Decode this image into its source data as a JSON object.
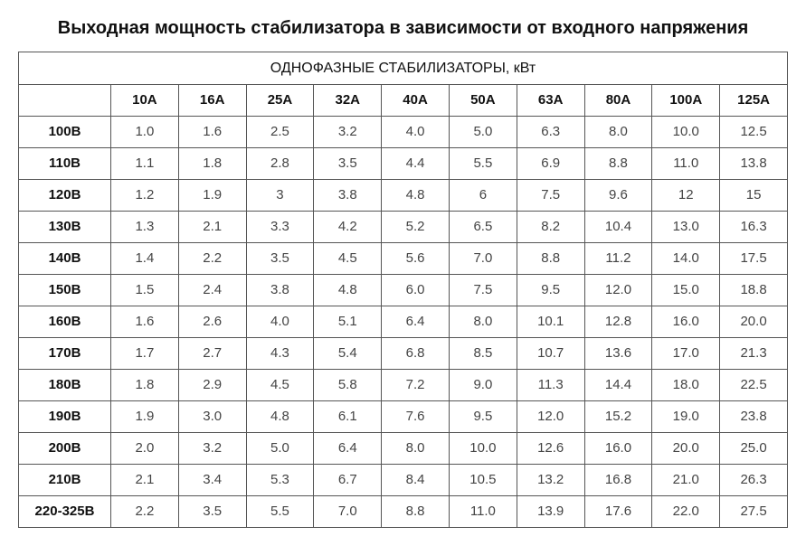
{
  "title": "Выходная мощность стабилизатора в зависимости от входного напряжения",
  "subtitle": "ОДНОФАЗНЫЕ СТАБИЛИЗАТОРЫ, кВт",
  "columns": [
    "10А",
    "16А",
    "25А",
    "32А",
    "40А",
    "50А",
    "63А",
    "80А",
    "100А",
    "125А"
  ],
  "rows": [
    {
      "v": "100В",
      "vals": [
        "1.0",
        "1.6",
        "2.5",
        "3.2",
        "4.0",
        "5.0",
        "6.3",
        "8.0",
        "10.0",
        "12.5"
      ]
    },
    {
      "v": "110В",
      "vals": [
        "1.1",
        "1.8",
        "2.8",
        "3.5",
        "4.4",
        "5.5",
        "6.9",
        "8.8",
        "11.0",
        "13.8"
      ]
    },
    {
      "v": "120В",
      "vals": [
        "1.2",
        "1.9",
        "3",
        "3.8",
        "4.8",
        "6",
        "7.5",
        "9.6",
        "12",
        "15"
      ]
    },
    {
      "v": "130В",
      "vals": [
        "1.3",
        "2.1",
        "3.3",
        "4.2",
        "5.2",
        "6.5",
        "8.2",
        "10.4",
        "13.0",
        "16.3"
      ]
    },
    {
      "v": "140В",
      "vals": [
        "1.4",
        "2.2",
        "3.5",
        "4.5",
        "5.6",
        "7.0",
        "8.8",
        "11.2",
        "14.0",
        "17.5"
      ]
    },
    {
      "v": "150В",
      "vals": [
        "1.5",
        "2.4",
        "3.8",
        "4.8",
        "6.0",
        "7.5",
        "9.5",
        "12.0",
        "15.0",
        "18.8"
      ]
    },
    {
      "v": "160В",
      "vals": [
        "1.6",
        "2.6",
        "4.0",
        "5.1",
        "6.4",
        "8.0",
        "10.1",
        "12.8",
        "16.0",
        "20.0"
      ]
    },
    {
      "v": "170В",
      "vals": [
        "1.7",
        "2.7",
        "4.3",
        "5.4",
        "6.8",
        "8.5",
        "10.7",
        "13.6",
        "17.0",
        "21.3"
      ]
    },
    {
      "v": "180В",
      "vals": [
        "1.8",
        "2.9",
        "4.5",
        "5.8",
        "7.2",
        "9.0",
        "11.3",
        "14.4",
        "18.0",
        "22.5"
      ]
    },
    {
      "v": "190В",
      "vals": [
        "1.9",
        "3.0",
        "4.8",
        "6.1",
        "7.6",
        "9.5",
        "12.0",
        "15.2",
        "19.0",
        "23.8"
      ]
    },
    {
      "v": "200В",
      "vals": [
        "2.0",
        "3.2",
        "5.0",
        "6.4",
        "8.0",
        "10.0",
        "12.6",
        "16.0",
        "20.0",
        "25.0"
      ]
    },
    {
      "v": "210В",
      "vals": [
        "2.1",
        "3.4",
        "5.3",
        "6.7",
        "8.4",
        "10.5",
        "13.2",
        "16.8",
        "21.0",
        "26.3"
      ]
    },
    {
      "v": "220-325В",
      "vals": [
        "2.2",
        "3.5",
        "5.5",
        "7.0",
        "8.8",
        "11.0",
        "13.9",
        "17.6",
        "22.0",
        "27.5"
      ]
    }
  ],
  "style": {
    "font_family": "Arial",
    "title_fontsize_pt": 20,
    "cell_fontsize_pt": 15,
    "text_color": "#111111",
    "value_color": "#444444",
    "border_color": "#555555",
    "background_color": "#ffffff"
  }
}
